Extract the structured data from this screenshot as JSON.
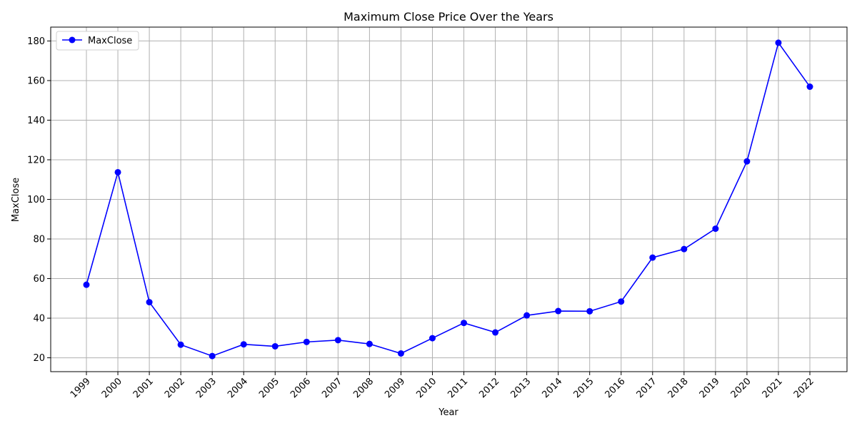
{
  "chart_data": {
    "type": "line",
    "title": "Maximum Close Price Over the Years",
    "xlabel": "Year",
    "ylabel": "MaxClose",
    "x": [
      "1999",
      "2000",
      "2001",
      "2002",
      "2003",
      "2004",
      "2005",
      "2006",
      "2007",
      "2008",
      "2009",
      "2010",
      "2011",
      "2012",
      "2013",
      "2014",
      "2015",
      "2016",
      "2017",
      "2018",
      "2019",
      "2020",
      "2021",
      "2022"
    ],
    "series": [
      {
        "name": "MaxClose",
        "values": [
          56.9,
          113.7,
          48.1,
          26.6,
          20.9,
          26.8,
          25.8,
          28.0,
          28.9,
          27.0,
          22.2,
          29.9,
          37.6,
          32.8,
          41.4,
          43.6,
          43.5,
          48.4,
          70.6,
          74.9,
          85.2,
          119.2,
          179.1,
          156.9
        ],
        "color": "#0000ff",
        "marker": "circle"
      }
    ],
    "ylim": [
      13.0,
      187.0
    ],
    "yticks": [
      20,
      40,
      60,
      80,
      100,
      120,
      140,
      160,
      180
    ],
    "grid": true,
    "legend": "top-left"
  }
}
